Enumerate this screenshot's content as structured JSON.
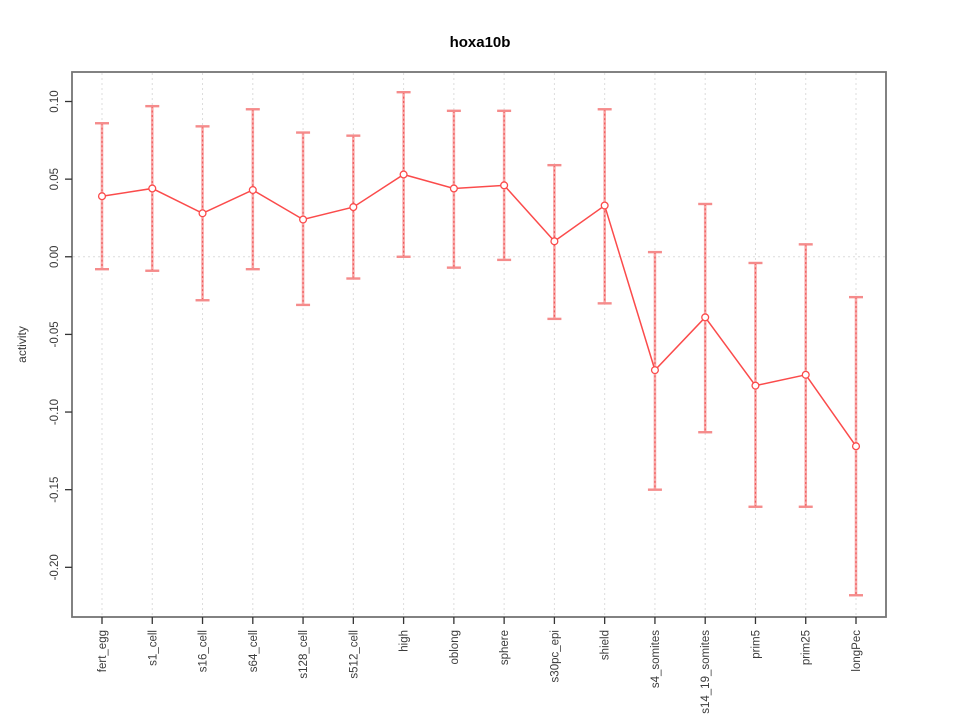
{
  "chart_data": {
    "type": "line",
    "title": "hoxa10b",
    "xlabel": "",
    "ylabel": "activity",
    "legend": "none",
    "grid": {
      "vertical_gridlines": "dotted, one per category",
      "zero_line": "dotted horizontal at 0.00"
    },
    "point_style": "open-circle-with-error-bars",
    "categories": [
      "fert_egg",
      "s1_cell",
      "s16_cell",
      "s64_cell",
      "s128_cell",
      "s512_cell",
      "high",
      "oblong",
      "sphere",
      "s30pc_epi",
      "shield",
      "s4_somites",
      "s14_19_somites",
      "prim5",
      "prim25",
      "longPec"
    ],
    "series": [
      {
        "name": "hoxa10b activity",
        "values": [
          0.039,
          0.044,
          0.028,
          0.043,
          0.024,
          0.032,
          0.053,
          0.044,
          0.046,
          0.01,
          0.033,
          -0.073,
          -0.039,
          -0.083,
          -0.076,
          -0.122
        ],
        "ci_upper": [
          0.086,
          0.097,
          0.084,
          0.095,
          0.08,
          0.078,
          0.106,
          0.094,
          0.094,
          0.059,
          0.095,
          0.003,
          0.034,
          -0.004,
          0.008,
          -0.026
        ],
        "ci_lower": [
          -0.008,
          -0.009,
          -0.028,
          -0.008,
          -0.031,
          -0.014,
          0.0,
          -0.007,
          -0.002,
          -0.04,
          -0.03,
          -0.15,
          -0.113,
          -0.161,
          -0.161,
          -0.218
        ]
      }
    ],
    "ylim": [
      -0.232,
      0.119
    ],
    "yticks": [
      0.1,
      0.05,
      0.0,
      -0.05,
      -0.1,
      -0.15,
      -0.2
    ],
    "ytick_labels": [
      "0.10",
      "0.05",
      "0.00",
      "-0.05",
      "-0.10",
      "-0.15",
      "-0.20"
    ],
    "colors": {
      "line": "#fb4b4b",
      "point_stroke": "#fb4b4b",
      "point_fill": "#ffffff",
      "error_bar": "#f9a9a9",
      "error_bar_dash": "#ee5c5c",
      "error_cap": "#f58b8b",
      "gridline": "#dcdcdc",
      "box": "#757575",
      "tick": "#333333",
      "text": "#3b3b3b"
    }
  }
}
